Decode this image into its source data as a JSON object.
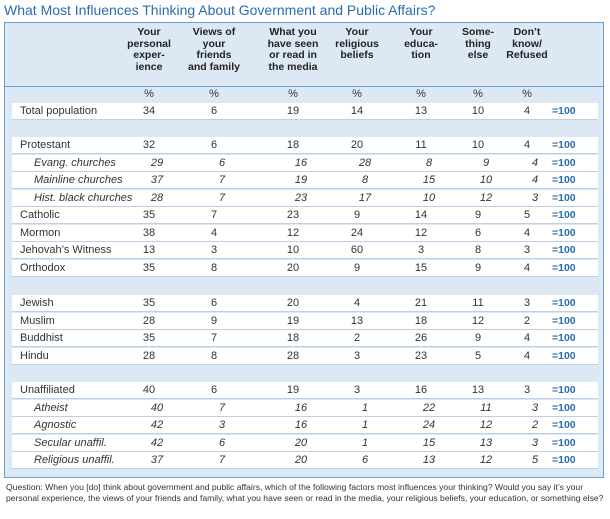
{
  "header": {
    "title": "What Most Influences Thinking About Government and Public Affairs?"
  },
  "table": {
    "columns": [
      [
        "Your",
        "personal",
        "exper-",
        "ience"
      ],
      [
        "Views of",
        "your",
        "friends",
        "and family"
      ],
      [
        "What you",
        "have seen",
        "or read in",
        "the media"
      ],
      [
        "Your",
        "religious",
        "beliefs"
      ],
      [
        "Your",
        "educa-",
        "tion"
      ],
      [
        "Some-",
        "thing",
        "else"
      ],
      [
        "Don’t",
        "know/",
        "Refused"
      ]
    ],
    "unit": "%",
    "total_label": "=100",
    "groups": [
      {
        "rows": [
          {
            "label": "Total population",
            "values": [
              34,
              6,
              19,
              14,
              13,
              10,
              4
            ],
            "sub": false
          }
        ]
      },
      {
        "rows": [
          {
            "label": "Protestant",
            "values": [
              32,
              6,
              18,
              20,
              11,
              10,
              4
            ],
            "sub": false
          },
          {
            "label": "Evang. churches",
            "values": [
              29,
              6,
              16,
              28,
              8,
              9,
              4
            ],
            "sub": true
          },
          {
            "label": "Mainline churches",
            "values": [
              37,
              7,
              19,
              8,
              15,
              10,
              4
            ],
            "sub": true
          },
          {
            "label": "Hist. black churches",
            "values": [
              28,
              7,
              23,
              17,
              10,
              12,
              3
            ],
            "sub": true
          },
          {
            "label": "Catholic",
            "values": [
              35,
              7,
              23,
              9,
              14,
              9,
              5
            ],
            "sub": false
          },
          {
            "label": "Mormon",
            "values": [
              38,
              4,
              12,
              24,
              12,
              6,
              4
            ],
            "sub": false
          },
          {
            "label": "Jehovah’s Witness",
            "values": [
              13,
              3,
              10,
              60,
              3,
              8,
              3
            ],
            "sub": false
          },
          {
            "label": "Orthodox",
            "values": [
              35,
              8,
              20,
              9,
              15,
              9,
              4
            ],
            "sub": false
          }
        ]
      },
      {
        "rows": [
          {
            "label": "Jewish",
            "values": [
              35,
              6,
              20,
              4,
              21,
              11,
              3
            ],
            "sub": false
          },
          {
            "label": "Muslim",
            "values": [
              28,
              9,
              19,
              13,
              18,
              12,
              2
            ],
            "sub": false
          },
          {
            "label": "Buddhist",
            "values": [
              35,
              7,
              18,
              2,
              26,
              9,
              4
            ],
            "sub": false
          },
          {
            "label": "Hindu",
            "values": [
              28,
              8,
              28,
              3,
              23,
              5,
              4
            ],
            "sub": false
          }
        ]
      },
      {
        "rows": [
          {
            "label": "Unaffiliated",
            "values": [
              40,
              6,
              19,
              3,
              16,
              13,
              3
            ],
            "sub": false
          },
          {
            "label": "Atheist",
            "values": [
              40,
              7,
              16,
              1,
              22,
              11,
              3
            ],
            "sub": true
          },
          {
            "label": "Agnostic",
            "values": [
              42,
              3,
              16,
              1,
              24,
              12,
              2
            ],
            "sub": true
          },
          {
            "label": "Secular unaffil.",
            "values": [
              42,
              6,
              20,
              1,
              15,
              13,
              3
            ],
            "sub": true
          },
          {
            "label": "Religious unaffil.",
            "values": [
              37,
              7,
              20,
              6,
              13,
              12,
              5
            ],
            "sub": true
          }
        ]
      }
    ]
  },
  "note": "Question: When you [do] think about government and public affairs, which of the following factors most influences your thinking? Would you say it’s your personal experience, the views of your friends and family, what you have seen or read in the media, your religious beliefs, your education, or something else?"
}
